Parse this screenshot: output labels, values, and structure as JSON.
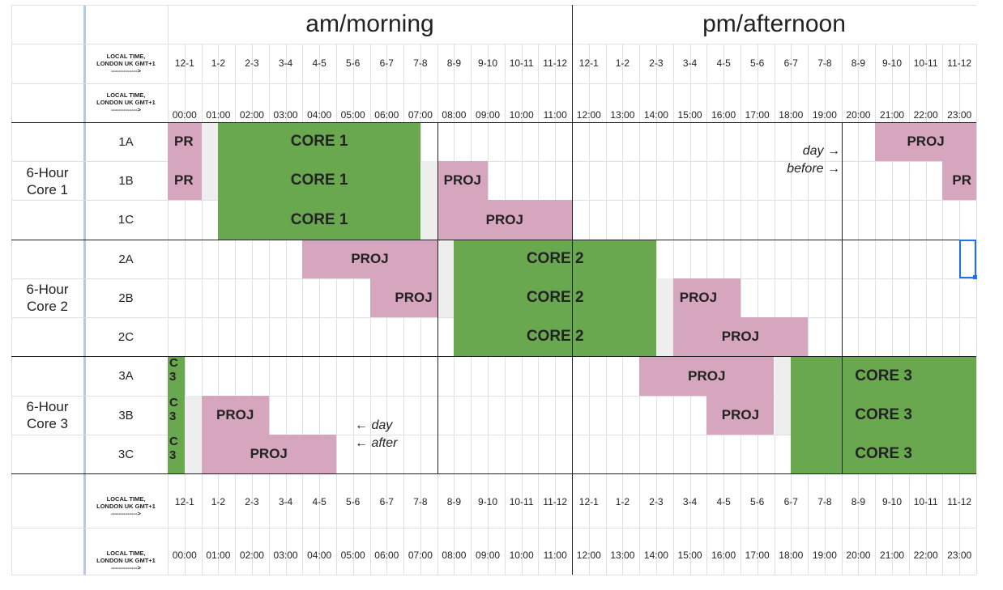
{
  "header": {
    "am": "am/morning",
    "pm": "pm/afternoon"
  },
  "local_time_label": {
    "line1": "LOCAL TIME,",
    "line2": "LONDON UK  GMT+1",
    "line3": "------------->"
  },
  "hour_ranges": [
    "12-1",
    "1-2",
    "2-3",
    "3-4",
    "4-5",
    "5-6",
    "6-7",
    "7-8",
    "8-9",
    "9-10",
    "10-11",
    "11-12",
    "12-1",
    "1-2",
    "2-3",
    "3-4",
    "4-5",
    "5-6",
    "6-7",
    "7-8",
    "8-9",
    "9-10",
    "10-11",
    "11-12"
  ],
  "hour_times": [
    "00:00",
    "01:00",
    "02:00",
    "03:00",
    "04:00",
    "05:00",
    "06:00",
    "07:00",
    "08:00",
    "09:00",
    "10:00",
    "11:00",
    "12:00",
    "13:00",
    "14:00",
    "15:00",
    "16:00",
    "17:00",
    "18:00",
    "19:00",
    "20:00",
    "21:00",
    "22:00",
    "23:00"
  ],
  "groups": [
    {
      "label_line1": "6-Hour",
      "label_line2": "Core 1"
    },
    {
      "label_line1": "6-Hour",
      "label_line2": "Core 2"
    },
    {
      "label_line1": "6-Hour",
      "label_line2": "Core 3"
    }
  ],
  "rows": [
    "1A",
    "1B",
    "1C",
    "2A",
    "2B",
    "2C",
    "3A",
    "3B",
    "3C"
  ],
  "blocks": [
    {
      "row": 0,
      "start": 0,
      "end": 2,
      "kind": "proj",
      "label": "PR",
      "align": "left"
    },
    {
      "row": 0,
      "start": 3,
      "end": 15,
      "kind": "core",
      "label": "CORE  1",
      "align": "center"
    },
    {
      "row": 0,
      "start": 42,
      "end": 48,
      "kind": "proj",
      "label": "PROJ",
      "align": "center"
    },
    {
      "row": 1,
      "start": 0,
      "end": 2,
      "kind": "proj",
      "label": "PR",
      "align": "left"
    },
    {
      "row": 1,
      "start": 3,
      "end": 15,
      "kind": "core",
      "label": "CORE  1",
      "align": "center"
    },
    {
      "row": 1,
      "start": 16,
      "end": 19,
      "kind": "proj",
      "label": "PROJ",
      "align": "left"
    },
    {
      "row": 1,
      "start": 46,
      "end": 48,
      "kind": "proj",
      "label": "PR",
      "align": "right"
    },
    {
      "row": 2,
      "start": 3,
      "end": 15,
      "kind": "core",
      "label": "CORE  1",
      "align": "center"
    },
    {
      "row": 2,
      "start": 16,
      "end": 24,
      "kind": "proj",
      "label": "PROJ",
      "align": "center"
    },
    {
      "row": 3,
      "start": 8,
      "end": 16,
      "kind": "proj",
      "label": "PROJ",
      "align": "center"
    },
    {
      "row": 3,
      "start": 17,
      "end": 29,
      "kind": "core",
      "label": "CORE  2",
      "align": "center"
    },
    {
      "row": 4,
      "start": 12,
      "end": 16,
      "kind": "proj",
      "label": "PROJ",
      "align": "right"
    },
    {
      "row": 4,
      "start": 17,
      "end": 29,
      "kind": "core",
      "label": "CORE  2",
      "align": "center"
    },
    {
      "row": 4,
      "start": 30,
      "end": 34,
      "kind": "proj",
      "label": "PROJ",
      "align": "left"
    },
    {
      "row": 5,
      "start": 17,
      "end": 29,
      "kind": "core",
      "label": "CORE  2",
      "align": "center"
    },
    {
      "row": 5,
      "start": 30,
      "end": 38,
      "kind": "proj",
      "label": "PROJ",
      "align": "center"
    },
    {
      "row": 6,
      "start": 0,
      "end": 1,
      "kind": "core",
      "label": "C\n3",
      "align": "left"
    },
    {
      "row": 6,
      "start": 28,
      "end": 36,
      "kind": "proj",
      "label": "PROJ",
      "align": "center"
    },
    {
      "row": 6,
      "start": 37,
      "end": 48,
      "kind": "core",
      "label": "CORE  3",
      "align": "center"
    },
    {
      "row": 7,
      "start": 0,
      "end": 1,
      "kind": "core",
      "label": "C\n3",
      "align": "left"
    },
    {
      "row": 7,
      "start": 2,
      "end": 6,
      "kind": "proj",
      "label": "PROJ",
      "align": "center"
    },
    {
      "row": 7,
      "start": 32,
      "end": 36,
      "kind": "proj",
      "label": "PROJ",
      "align": "center"
    },
    {
      "row": 7,
      "start": 37,
      "end": 48,
      "kind": "core",
      "label": "CORE  3",
      "align": "center"
    },
    {
      "row": 8,
      "start": 0,
      "end": 1,
      "kind": "core",
      "label": "C\n3",
      "align": "left"
    },
    {
      "row": 8,
      "start": 2,
      "end": 10,
      "kind": "proj",
      "label": "PROJ",
      "align": "center"
    },
    {
      "row": 8,
      "start": 37,
      "end": 48,
      "kind": "core",
      "label": "CORE  3",
      "align": "center"
    }
  ],
  "gaps": [
    {
      "row": 0,
      "start": 2,
      "end": 3
    },
    {
      "row": 1,
      "start": 2,
      "end": 3
    },
    {
      "row": 1,
      "start": 15,
      "end": 16
    },
    {
      "row": 2,
      "start": 15,
      "end": 16
    },
    {
      "row": 3,
      "start": 16,
      "end": 17
    },
    {
      "row": 4,
      "start": 16,
      "end": 17
    },
    {
      "row": 4,
      "start": 29,
      "end": 30
    },
    {
      "row": 5,
      "start": 29,
      "end": 30
    },
    {
      "row": 6,
      "start": 36,
      "end": 37
    },
    {
      "row": 7,
      "start": 1,
      "end": 2
    },
    {
      "row": 7,
      "start": 36,
      "end": 37
    },
    {
      "row": 8,
      "start": 1,
      "end": 2
    }
  ],
  "notes": {
    "day_before": {
      "line1": "day →",
      "line2": "before →"
    },
    "day_after": {
      "line1": "← day",
      "line2": "← after"
    }
  },
  "colors": {
    "core": "#6aa84f",
    "proj": "#d5a6bd",
    "gap": "#eeeeee",
    "grid_light": "#e0e0e0",
    "grid_dark": "#222222",
    "selection": "#1a73e8"
  }
}
